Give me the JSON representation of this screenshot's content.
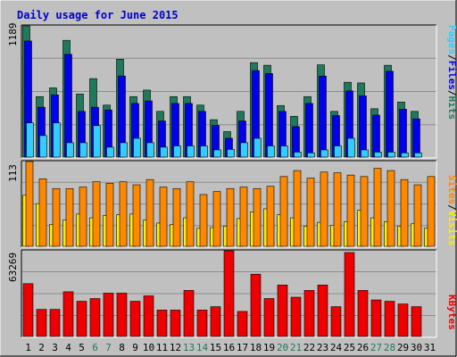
{
  "title": "Daily usage for June 2015",
  "colors": {
    "background": "#c0c0c0",
    "title": "#0000cc",
    "hits": "#1e7a5a",
    "files": "#0000ee",
    "pages": "#33ccff",
    "visits": "#ffee00",
    "sites": "#ff8800",
    "kbytes": "#ee0000",
    "weekend": "#1e7a5a",
    "weekday": "#000000"
  },
  "chart_data": [
    {
      "type": "bar",
      "panel": "hits-files-pages",
      "ymax_label": "1189",
      "ylim": [
        0,
        1189
      ],
      "legend": {
        "pages": "Pages",
        "files": "Files",
        "hits": "Hits",
        "sep": "/"
      },
      "categories": [
        "1",
        "2",
        "3",
        "4",
        "5",
        "6",
        "7",
        "8",
        "9",
        "10",
        "11",
        "12",
        "13",
        "14",
        "15",
        "16",
        "17",
        "18",
        "19",
        "20",
        "21",
        "22",
        "23",
        "24",
        "25",
        "26",
        "27",
        "28",
        "29",
        "30",
        "31"
      ],
      "series": [
        {
          "name": "Hits",
          "values": [
            1189,
            548,
            627,
            1058,
            571,
            711,
            471,
            887,
            548,
            607,
            414,
            548,
            548,
            471,
            339,
            231,
            414,
            856,
            832,
            467,
            370,
            548,
            836,
            414,
            678,
            672,
            438,
            832,
            499,
            414,
            0
          ]
        },
        {
          "name": "Files",
          "values": [
            1052,
            452,
            564,
            931,
            414,
            452,
            427,
            735,
            486,
            509,
            327,
            486,
            486,
            414,
            287,
            170,
            327,
            784,
            757,
            414,
            276,
            486,
            734,
            376,
            600,
            554,
            380,
            778,
            434,
            346,
            0
          ]
        },
        {
          "name": "Pages",
          "values": [
            310,
            195,
            310,
            130,
            130,
            285,
            90,
            130,
            170,
            130,
            90,
            101,
            101,
            101,
            65,
            70,
            130,
            170,
            101,
            101,
            45,
            38,
            65,
            101,
            170,
            65,
            45,
            45,
            38,
            38,
            0
          ]
        }
      ]
    },
    {
      "type": "bar",
      "panel": "sites-visits",
      "ymax_label": "113",
      "ylim": [
        0,
        113
      ],
      "legend": {
        "sites": "Sites",
        "visits": "Visits",
        "sep": "/"
      },
      "categories": [
        "1",
        "2",
        "3",
        "4",
        "5",
        "6",
        "7",
        "8",
        "9",
        "10",
        "11",
        "12",
        "13",
        "14",
        "15",
        "16",
        "17",
        "18",
        "19",
        "20",
        "21",
        "22",
        "23",
        "24",
        "25",
        "26",
        "27",
        "28",
        "29",
        "30",
        "31"
      ],
      "series": [
        {
          "name": "Sites",
          "values": [
            113,
            90,
            77,
            77,
            79,
            86,
            84,
            86,
            82,
            89,
            79,
            77,
            86,
            69,
            73,
            77,
            79,
            77,
            80,
            93,
            101,
            91,
            99,
            98,
            95,
            93,
            104,
            101,
            89,
            82,
            93
          ]
        },
        {
          "name": "Visits",
          "values": [
            68,
            57,
            29,
            35,
            43,
            38,
            41,
            42,
            43,
            35,
            31,
            29,
            38,
            24,
            25,
            27,
            37,
            46,
            50,
            42,
            38,
            27,
            32,
            28,
            33,
            48,
            38,
            33,
            27,
            30,
            24
          ]
        }
      ]
    },
    {
      "type": "bar",
      "panel": "kbytes",
      "ymax_label": "63269",
      "ylim": [
        0,
        63269
      ],
      "legend": {
        "kbytes": "KBytes"
      },
      "categories": [
        "1",
        "2",
        "3",
        "4",
        "5",
        "6",
        "7",
        "8",
        "9",
        "10",
        "11",
        "12",
        "13",
        "14",
        "15",
        "16",
        "17",
        "18",
        "19",
        "20",
        "21",
        "22",
        "23",
        "24",
        "25",
        "26",
        "27",
        "28",
        "29",
        "30",
        "31"
      ],
      "series": [
        {
          "name": "KBytes",
          "values": [
            39000,
            20000,
            20000,
            33000,
            26000,
            28000,
            32000,
            32000,
            26000,
            30000,
            19500,
            19500,
            34000,
            19500,
            22000,
            63269,
            18500,
            46000,
            28000,
            38000,
            29000,
            34000,
            38000,
            22000,
            62000,
            34000,
            27000,
            26000,
            24000,
            22000,
            0
          ]
        }
      ]
    }
  ],
  "x_axis": {
    "labels": [
      "1",
      "2",
      "3",
      "4",
      "5",
      "6",
      "7",
      "8",
      "9",
      "10",
      "11",
      "12",
      "13",
      "14",
      "15",
      "16",
      "17",
      "18",
      "19",
      "20",
      "21",
      "22",
      "23",
      "24",
      "25",
      "26",
      "27",
      "28",
      "29",
      "30",
      "31"
    ],
    "weekend": [
      "6",
      "7",
      "13",
      "14",
      "20",
      "21",
      "27",
      "28"
    ]
  }
}
